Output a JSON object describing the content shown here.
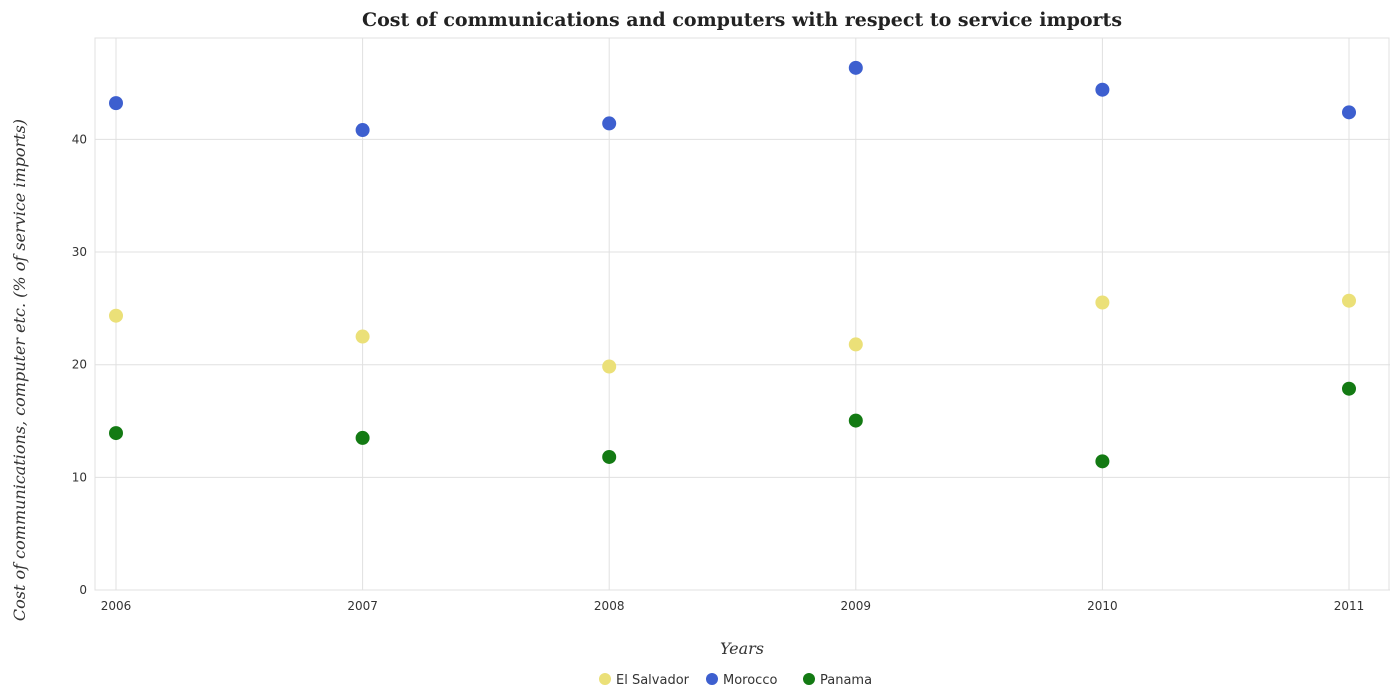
{
  "chart_data": {
    "type": "scatter",
    "title": "Cost of communications and computers with respect to service imports",
    "xlabel": "Years",
    "ylabel": "Cost of communications, computer etc. (% of service imports)",
    "x": [
      "2006",
      "2007",
      "2008",
      "2009",
      "2010",
      "2011"
    ],
    "ylim": [
      0,
      49
    ],
    "yticks": [
      0,
      10,
      20,
      30,
      40
    ],
    "grid": true,
    "legend_position": "bottom-center",
    "series": [
      {
        "name": "El Salvador",
        "color": "#ebe078",
        "values": [
          24.35,
          22.5,
          19.84,
          21.8,
          25.52,
          25.68
        ]
      },
      {
        "name": "Morocco",
        "color": "#3d5fcf",
        "values": [
          43.22,
          40.83,
          41.42,
          46.35,
          44.41,
          42.4
        ]
      },
      {
        "name": "Panama",
        "color": "#137a13",
        "values": [
          13.93,
          13.5,
          11.81,
          15.04,
          11.42,
          17.87
        ]
      }
    ]
  }
}
